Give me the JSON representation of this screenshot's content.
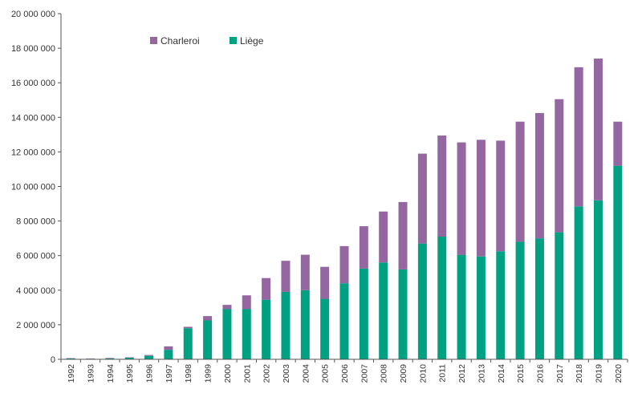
{
  "chart_data": {
    "type": "bar",
    "stacked": true,
    "title": "",
    "xlabel": "",
    "ylabel": "",
    "ylim": [
      0,
      20000000
    ],
    "y_ticks": [
      0,
      2000000,
      4000000,
      6000000,
      8000000,
      10000000,
      12000000,
      14000000,
      16000000,
      18000000,
      20000000
    ],
    "y_tick_labels": [
      "0",
      "2 000 000",
      "4 000 000",
      "6 000 000",
      "8 000 000",
      "10 000 000",
      "12 000 000",
      "14 000 000",
      "16 000 000",
      "18 000 000",
      "20 000 000"
    ],
    "grid": false,
    "legend_position": "top-left",
    "categories": [
      "1992",
      "1993",
      "1994",
      "1995",
      "1996",
      "1997",
      "1998",
      "1999",
      "2000",
      "2001",
      "2002",
      "2003",
      "2004",
      "2005",
      "2006",
      "2007",
      "2008",
      "2009",
      "2010",
      "2011",
      "2012",
      "2013",
      "2014",
      "2015",
      "2016",
      "2017",
      "2018",
      "2019",
      "2020"
    ],
    "series": [
      {
        "name": "Liège",
        "color": "#00a082",
        "values": [
          50000,
          30000,
          50000,
          100000,
          200000,
          550000,
          1800000,
          2250000,
          2900000,
          2900000,
          3450000,
          3900000,
          4000000,
          3500000,
          4400000,
          5250000,
          5600000,
          5200000,
          6700000,
          7100000,
          6050000,
          5950000,
          6250000,
          6800000,
          7000000,
          7350000,
          8850000,
          9200000,
          11200000
        ]
      },
      {
        "name": "Charleroi",
        "color": "#9467a0",
        "values": [
          20000,
          20000,
          30000,
          20000,
          50000,
          200000,
          80000,
          250000,
          250000,
          800000,
          1250000,
          1800000,
          2050000,
          1850000,
          2150000,
          2450000,
          2950000,
          3900000,
          5200000,
          5850000,
          6500000,
          6750000,
          6400000,
          6950000,
          7250000,
          7700000,
          8050000,
          8200000,
          2550000
        ]
      }
    ]
  }
}
